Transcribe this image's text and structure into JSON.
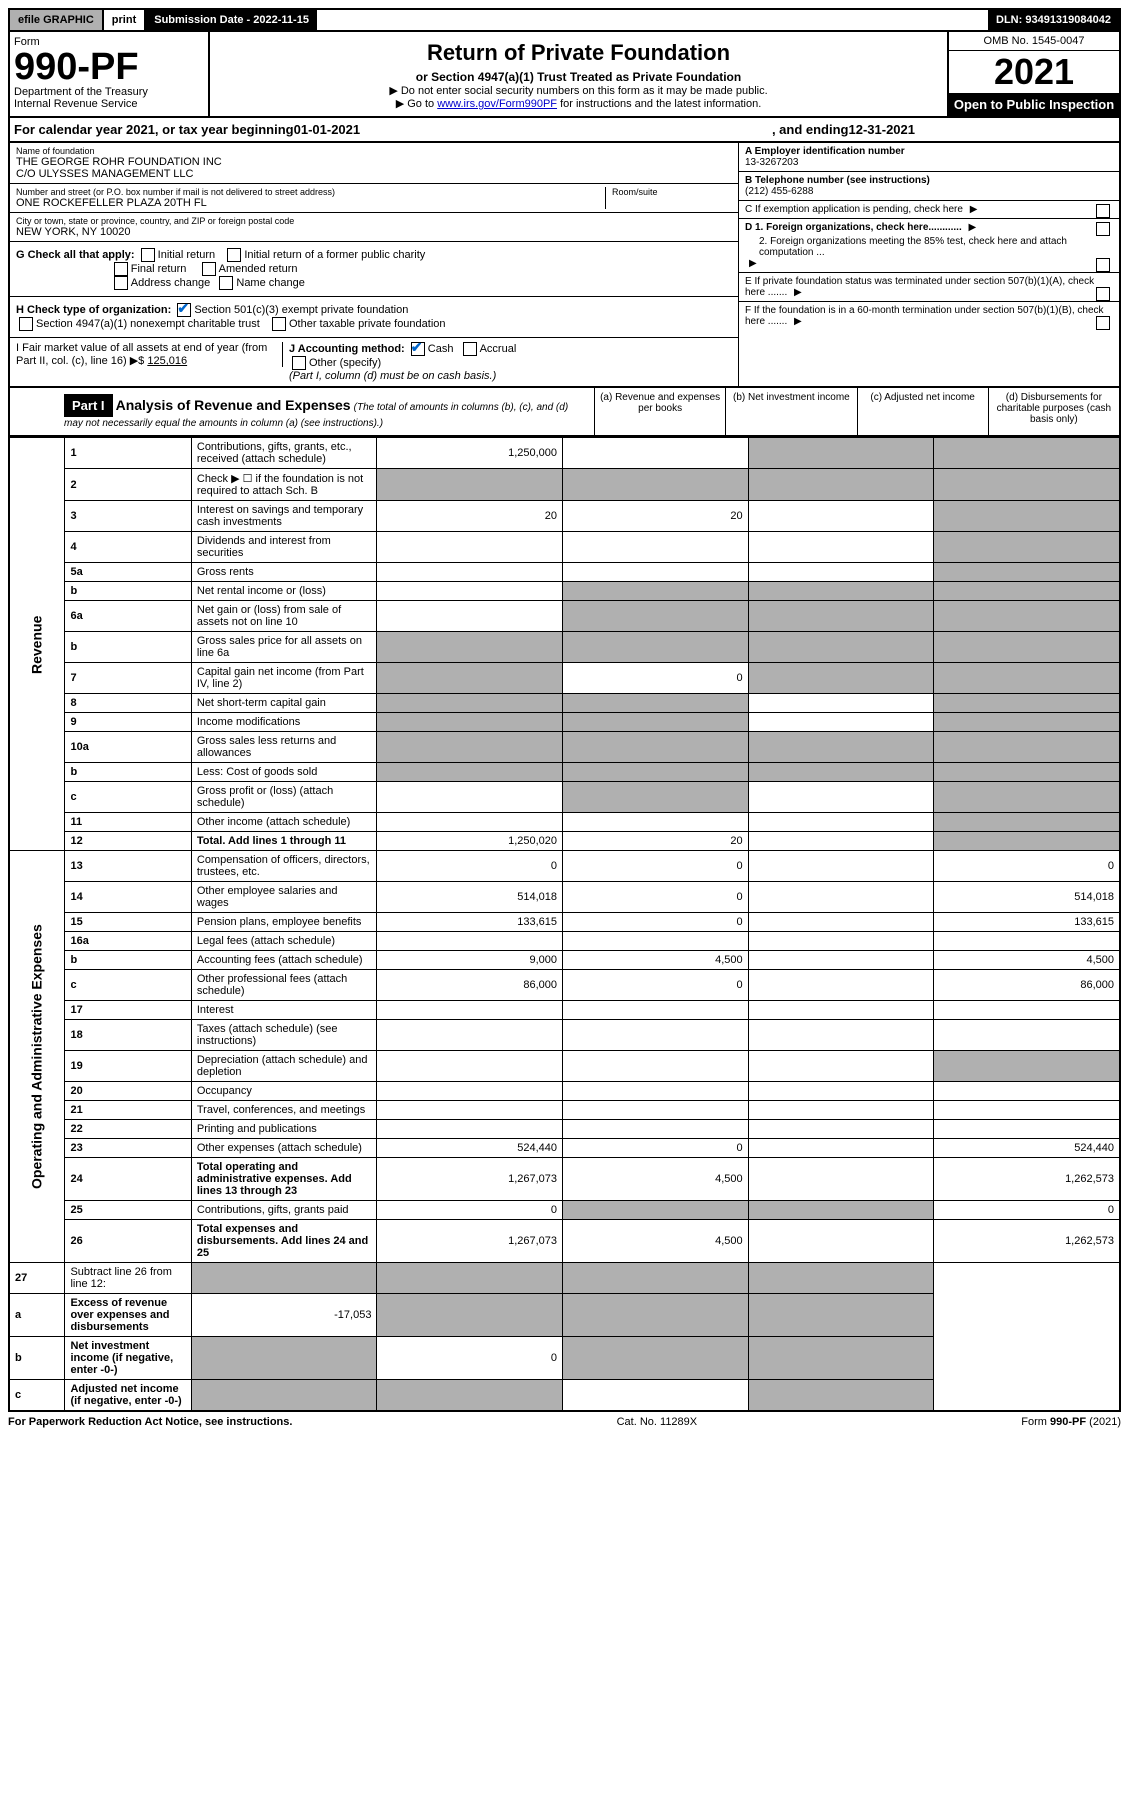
{
  "topbar": {
    "efile": "efile GRAPHIC",
    "print": "print",
    "submission_label": "Submission Date",
    "submission_date": "2022-11-15",
    "dln_label": "DLN:",
    "dln": "93491319084042"
  },
  "header": {
    "form_word": "Form",
    "form_no": "990-PF",
    "dept1": "Department of the Treasury",
    "dept2": "Internal Revenue Service",
    "title": "Return of Private Foundation",
    "subtitle": "or Section 4947(a)(1) Trust Treated as Private Foundation",
    "note1": "▶ Do not enter social security numbers on this form as it may be made public.",
    "note2_prefix": "▶ Go to ",
    "note2_link": "www.irs.gov/Form990PF",
    "note2_suffix": " for instructions and the latest information.",
    "omb": "OMB No. 1545-0047",
    "year": "2021",
    "open": "Open to Public Inspection"
  },
  "cal": {
    "prefix": "For calendar year 2021, or tax year beginning ",
    "start": "01-01-2021",
    "mid": ", and ending ",
    "end": "12-31-2021"
  },
  "entity": {
    "name_label": "Name of foundation",
    "name1": "THE GEORGE ROHR FOUNDATION INC",
    "name2": "C/O ULYSSES MANAGEMENT LLC",
    "addr_label": "Number and street (or P.O. box number if mail is not delivered to street address)",
    "addr": "ONE ROCKEFELLER PLAZA 20TH FL",
    "room_label": "Room/suite",
    "city_label": "City or town, state or province, country, and ZIP or foreign postal code",
    "city": "NEW YORK, NY  10020",
    "ein_label": "A Employer identification number",
    "ein": "13-3267203",
    "tel_label": "B Telephone number (see instructions)",
    "tel": "(212) 455-6288",
    "c_label": "C If exemption application is pending, check here",
    "d1": "D 1. Foreign organizations, check here............",
    "d2": "2. Foreign organizations meeting the 85% test, check here and attach computation ...",
    "e": "E  If private foundation status was terminated under section 507(b)(1)(A), check here .......",
    "f": "F  If the foundation is in a 60-month termination under section 507(b)(1)(B), check here .......",
    "g_label": "G Check all that apply:",
    "g_opts": [
      "Initial return",
      "Final return",
      "Address change",
      "Initial return of a former public charity",
      "Amended return",
      "Name change"
    ],
    "h_label": "H Check type of organization:",
    "h1": "Section 501(c)(3) exempt private foundation",
    "h2": "Section 4947(a)(1) nonexempt charitable trust",
    "h3": "Other taxable private foundation",
    "i_label": "I Fair market value of all assets at end of year (from Part II, col. (c), line 16) ▶$",
    "i_val": "125,016",
    "j_label": "J Accounting method:",
    "j_cash": "Cash",
    "j_accrual": "Accrual",
    "j_other": "Other (specify)",
    "j_note": "(Part I, column (d) must be on cash basis.)"
  },
  "part1": {
    "label": "Part I",
    "title": "Analysis of Revenue and Expenses",
    "note": "(The total of amounts in columns (b), (c), and (d) may not necessarily equal the amounts in column (a) (see instructions).)",
    "col_a": "(a) Revenue and expenses per books",
    "col_b": "(b) Net investment income",
    "col_c": "(c) Adjusted net income",
    "col_d": "(d) Disbursements for charitable purposes (cash basis only)"
  },
  "sections": {
    "revenue": "Revenue",
    "expenses": "Operating and Administrative Expenses"
  },
  "rows": [
    {
      "n": "1",
      "d": "Contributions, gifts, grants, etc., received (attach schedule)",
      "a": "1,250,000",
      "b": "",
      "c": "shade",
      "dd": "shade"
    },
    {
      "n": "2",
      "d": "Check ▶ ☐ if the foundation is not required to attach Sch. B",
      "a": "shade",
      "b": "shade",
      "c": "shade",
      "dd": "shade"
    },
    {
      "n": "3",
      "d": "Interest on savings and temporary cash investments",
      "a": "20",
      "b": "20",
      "c": "",
      "dd": "shade"
    },
    {
      "n": "4",
      "d": "Dividends and interest from securities",
      "a": "",
      "b": "",
      "c": "",
      "dd": "shade"
    },
    {
      "n": "5a",
      "d": "Gross rents",
      "a": "",
      "b": "",
      "c": "",
      "dd": "shade"
    },
    {
      "n": "b",
      "d": "Net rental income or (loss)",
      "a": "",
      "b": "shade",
      "c": "shade",
      "dd": "shade"
    },
    {
      "n": "6a",
      "d": "Net gain or (loss) from sale of assets not on line 10",
      "a": "",
      "b": "shade",
      "c": "shade",
      "dd": "shade"
    },
    {
      "n": "b",
      "d": "Gross sales price for all assets on line 6a",
      "a": "shade",
      "b": "shade",
      "c": "shade",
      "dd": "shade"
    },
    {
      "n": "7",
      "d": "Capital gain net income (from Part IV, line 2)",
      "a": "shade",
      "b": "0",
      "c": "shade",
      "dd": "shade"
    },
    {
      "n": "8",
      "d": "Net short-term capital gain",
      "a": "shade",
      "b": "shade",
      "c": "",
      "dd": "shade"
    },
    {
      "n": "9",
      "d": "Income modifications",
      "a": "shade",
      "b": "shade",
      "c": "",
      "dd": "shade"
    },
    {
      "n": "10a",
      "d": "Gross sales less returns and allowances",
      "a": "shade",
      "b": "shade",
      "c": "shade",
      "dd": "shade"
    },
    {
      "n": "b",
      "d": "Less: Cost of goods sold",
      "a": "shade",
      "b": "shade",
      "c": "shade",
      "dd": "shade"
    },
    {
      "n": "c",
      "d": "Gross profit or (loss) (attach schedule)",
      "a": "",
      "b": "shade",
      "c": "",
      "dd": "shade"
    },
    {
      "n": "11",
      "d": "Other income (attach schedule)",
      "a": "",
      "b": "",
      "c": "",
      "dd": "shade"
    },
    {
      "n": "12",
      "d": "Total. Add lines 1 through 11",
      "a": "1,250,020",
      "b": "20",
      "c": "",
      "dd": "shade",
      "bold": true
    }
  ],
  "exp_rows": [
    {
      "n": "13",
      "d": "Compensation of officers, directors, trustees, etc.",
      "a": "0",
      "b": "0",
      "c": "",
      "dd": "0"
    },
    {
      "n": "14",
      "d": "Other employee salaries and wages",
      "a": "514,018",
      "b": "0",
      "c": "",
      "dd": "514,018"
    },
    {
      "n": "15",
      "d": "Pension plans, employee benefits",
      "a": "133,615",
      "b": "0",
      "c": "",
      "dd": "133,615"
    },
    {
      "n": "16a",
      "d": "Legal fees (attach schedule)",
      "a": "",
      "b": "",
      "c": "",
      "dd": ""
    },
    {
      "n": "b",
      "d": "Accounting fees (attach schedule)",
      "a": "9,000",
      "b": "4,500",
      "c": "",
      "dd": "4,500"
    },
    {
      "n": "c",
      "d": "Other professional fees (attach schedule)",
      "a": "86,000",
      "b": "0",
      "c": "",
      "dd": "86,000"
    },
    {
      "n": "17",
      "d": "Interest",
      "a": "",
      "b": "",
      "c": "",
      "dd": ""
    },
    {
      "n": "18",
      "d": "Taxes (attach schedule) (see instructions)",
      "a": "",
      "b": "",
      "c": "",
      "dd": ""
    },
    {
      "n": "19",
      "d": "Depreciation (attach schedule) and depletion",
      "a": "",
      "b": "",
      "c": "",
      "dd": "shade"
    },
    {
      "n": "20",
      "d": "Occupancy",
      "a": "",
      "b": "",
      "c": "",
      "dd": ""
    },
    {
      "n": "21",
      "d": "Travel, conferences, and meetings",
      "a": "",
      "b": "",
      "c": "",
      "dd": ""
    },
    {
      "n": "22",
      "d": "Printing and publications",
      "a": "",
      "b": "",
      "c": "",
      "dd": ""
    },
    {
      "n": "23",
      "d": "Other expenses (attach schedule)",
      "a": "524,440",
      "b": "0",
      "c": "",
      "dd": "524,440"
    },
    {
      "n": "24",
      "d": "Total operating and administrative expenses. Add lines 13 through 23",
      "a": "1,267,073",
      "b": "4,500",
      "c": "",
      "dd": "1,262,573",
      "bold": true
    },
    {
      "n": "25",
      "d": "Contributions, gifts, grants paid",
      "a": "0",
      "b": "shade",
      "c": "shade",
      "dd": "0"
    },
    {
      "n": "26",
      "d": "Total expenses and disbursements. Add lines 24 and 25",
      "a": "1,267,073",
      "b": "4,500",
      "c": "",
      "dd": "1,262,573",
      "bold": true
    }
  ],
  "final_rows": [
    {
      "n": "27",
      "d": "Subtract line 26 from line 12:",
      "a": "shade",
      "b": "shade",
      "c": "shade",
      "dd": "shade"
    },
    {
      "n": "a",
      "d": "Excess of revenue over expenses and disbursements",
      "a": "-17,053",
      "b": "shade",
      "c": "shade",
      "dd": "shade",
      "bold": true
    },
    {
      "n": "b",
      "d": "Net investment income (if negative, enter -0-)",
      "a": "shade",
      "b": "0",
      "c": "shade",
      "dd": "shade",
      "bold": true
    },
    {
      "n": "c",
      "d": "Adjusted net income (if negative, enter -0-)",
      "a": "shade",
      "b": "shade",
      "c": "",
      "dd": "shade",
      "bold": true
    }
  ],
  "footer": {
    "left": "For Paperwork Reduction Act Notice, see instructions.",
    "center": "Cat. No. 11289X",
    "right": "Form 990-PF (2021)"
  }
}
